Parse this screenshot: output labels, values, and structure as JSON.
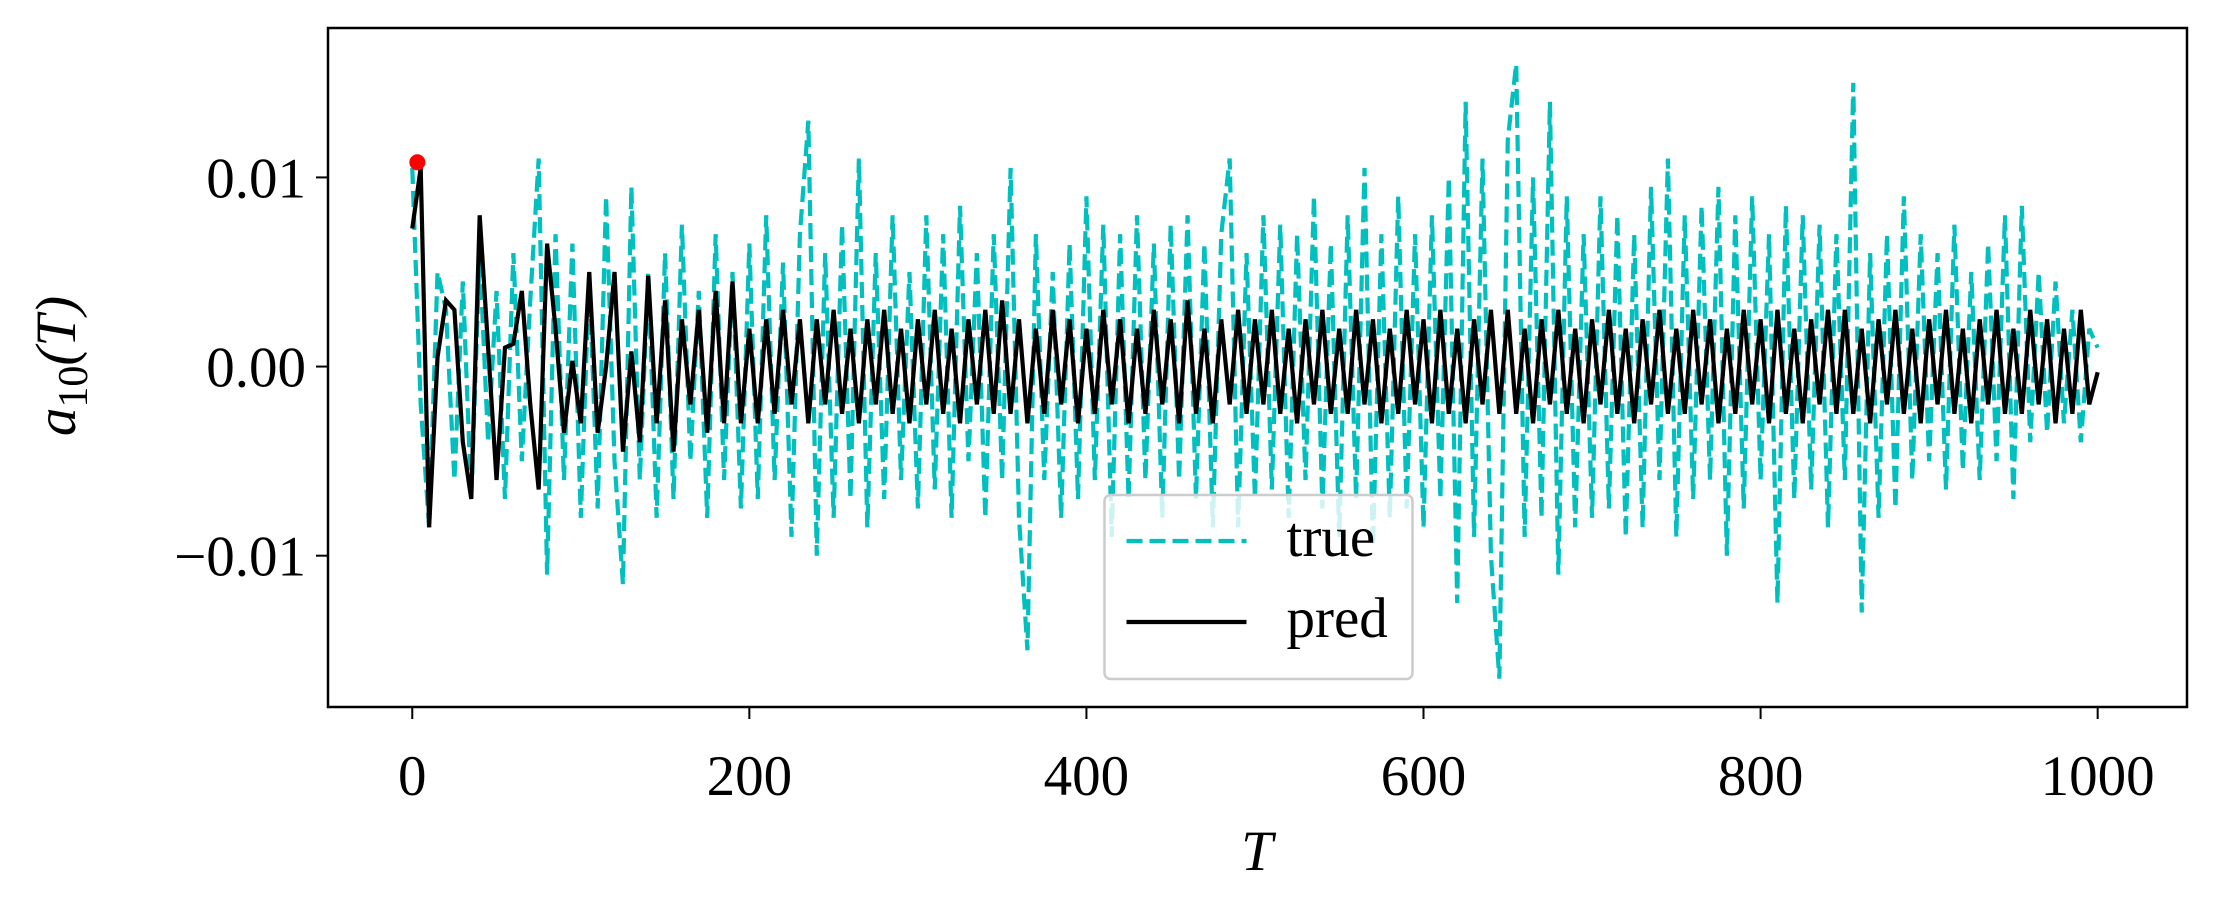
{
  "chart_data": {
    "type": "line",
    "ylabel": {
      "base": "a",
      "sub": "10",
      "arg": "(T)"
    },
    "xlabel": "T",
    "x": [
      0,
      5,
      10,
      15,
      20,
      25,
      30,
      35,
      40,
      45,
      50,
      55,
      60,
      65,
      70,
      75,
      80,
      85,
      90,
      95,
      100,
      105,
      110,
      115,
      120,
      125,
      130,
      135,
      140,
      145,
      150,
      155,
      160,
      165,
      170,
      175,
      180,
      185,
      190,
      195,
      200,
      205,
      210,
      215,
      220,
      225,
      230,
      235,
      240,
      245,
      250,
      255,
      260,
      265,
      270,
      275,
      280,
      285,
      290,
      295,
      300,
      305,
      310,
      315,
      320,
      325,
      330,
      335,
      340,
      345,
      350,
      355,
      360,
      365,
      370,
      375,
      380,
      385,
      390,
      395,
      400,
      405,
      410,
      415,
      420,
      425,
      430,
      435,
      440,
      445,
      450,
      455,
      460,
      465,
      470,
      475,
      480,
      485,
      490,
      495,
      500,
      505,
      510,
      515,
      520,
      525,
      530,
      535,
      540,
      545,
      550,
      555,
      560,
      565,
      570,
      575,
      580,
      585,
      590,
      595,
      600,
      605,
      610,
      615,
      620,
      625,
      630,
      635,
      640,
      645,
      650,
      655,
      660,
      665,
      670,
      675,
      680,
      685,
      690,
      695,
      700,
      705,
      710,
      715,
      720,
      725,
      730,
      735,
      740,
      745,
      750,
      755,
      760,
      765,
      770,
      775,
      780,
      785,
      790,
      795,
      800,
      805,
      810,
      815,
      820,
      825,
      830,
      835,
      840,
      845,
      850,
      855,
      860,
      865,
      870,
      875,
      880,
      885,
      890,
      895,
      900,
      905,
      910,
      915,
      920,
      925,
      930,
      935,
      940,
      945,
      950,
      955,
      960,
      965,
      970,
      975,
      980,
      985,
      990,
      995,
      1000
    ],
    "series": [
      {
        "name": "true",
        "color": "#00bfbf",
        "linestyle": "--",
        "values": [
          0.0105,
          -0.002,
          -0.0085,
          0.005,
          0.003,
          -0.006,
          0.0045,
          -0.007,
          0.006,
          -0.004,
          0.004,
          -0.007,
          0.006,
          -0.005,
          0.0035,
          0.011,
          -0.011,
          0.007,
          -0.006,
          0.0065,
          -0.008,
          0.005,
          -0.0075,
          0.009,
          -0.005,
          -0.0115,
          0.0095,
          -0.006,
          0.005,
          -0.008,
          0.006,
          -0.007,
          0.0075,
          -0.005,
          0.004,
          -0.008,
          0.007,
          -0.006,
          0.005,
          -0.0075,
          0.0065,
          -0.007,
          0.008,
          -0.006,
          0.0055,
          -0.009,
          0.007,
          0.013,
          -0.01,
          0.006,
          -0.008,
          0.0075,
          -0.007,
          0.011,
          -0.0085,
          0.006,
          -0.007,
          0.008,
          -0.006,
          0.005,
          -0.0075,
          0.008,
          -0.0065,
          0.007,
          -0.008,
          0.0085,
          -0.005,
          0.006,
          -0.008,
          0.007,
          -0.006,
          0.0105,
          -0.008,
          -0.015,
          0.007,
          -0.006,
          0.005,
          -0.008,
          0.0065,
          -0.007,
          0.009,
          -0.006,
          0.0075,
          -0.009,
          0.007,
          -0.007,
          0.008,
          -0.006,
          0.0065,
          -0.008,
          0.0075,
          -0.006,
          0.008,
          -0.007,
          0.0065,
          -0.0085,
          0.007,
          0.011,
          -0.0085,
          0.006,
          -0.007,
          0.008,
          -0.0065,
          0.0075,
          -0.008,
          0.007,
          -0.006,
          0.009,
          -0.0075,
          0.0065,
          -0.009,
          0.008,
          -0.007,
          0.0105,
          -0.0095,
          0.007,
          -0.008,
          0.009,
          -0.0075,
          0.007,
          -0.0085,
          0.008,
          -0.007,
          0.01,
          -0.0125,
          0.014,
          -0.009,
          0.011,
          -0.01,
          -0.0165,
          0.012,
          0.016,
          -0.009,
          0.01,
          -0.008,
          0.014,
          -0.011,
          0.009,
          -0.0085,
          0.007,
          -0.008,
          0.009,
          -0.0075,
          0.008,
          -0.009,
          0.007,
          -0.0085,
          0.0095,
          -0.006,
          0.011,
          -0.009,
          0.008,
          -0.007,
          0.0085,
          -0.006,
          0.0095,
          -0.01,
          0.008,
          -0.0075,
          0.009,
          -0.006,
          0.007,
          -0.0125,
          0.0085,
          -0.007,
          0.008,
          -0.0065,
          0.0075,
          -0.0085,
          0.007,
          -0.006,
          0.015,
          -0.013,
          0.006,
          -0.008,
          0.007,
          -0.0075,
          0.009,
          -0.006,
          0.007,
          -0.005,
          0.006,
          -0.0065,
          0.0075,
          -0.0055,
          0.005,
          -0.006,
          0.0065,
          -0.005,
          0.008,
          -0.007,
          0.0085,
          -0.004,
          0.005,
          -0.0035,
          0.0045,
          -0.003,
          0.003,
          -0.004,
          0.002,
          0.001
        ]
      },
      {
        "name": "pred",
        "color": "#000000",
        "linestyle": "-",
        "values": [
          0.0073,
          0.0105,
          -0.0085,
          0.0005,
          0.0035,
          0.003,
          -0.004,
          -0.007,
          0.008,
          0.001,
          -0.006,
          0.001,
          0.0012,
          0.004,
          -0.002,
          -0.0065,
          0.0065,
          0.002,
          -0.0035,
          0.0003,
          -0.003,
          0.005,
          -0.0035,
          0.0,
          0.005,
          -0.0045,
          0.0008,
          -0.004,
          0.0048,
          -0.003,
          0.0035,
          -0.0045,
          0.0025,
          -0.002,
          0.003,
          -0.0035,
          0.004,
          -0.003,
          0.0045,
          -0.003,
          0.002,
          -0.003,
          0.0025,
          -0.0025,
          0.003,
          -0.002,
          0.0025,
          -0.003,
          0.0025,
          -0.002,
          0.003,
          -0.0025,
          0.002,
          -0.003,
          0.0025,
          -0.002,
          0.003,
          -0.0025,
          0.002,
          -0.003,
          0.0025,
          -0.002,
          0.003,
          -0.0025,
          0.002,
          -0.003,
          0.0025,
          -0.002,
          0.003,
          -0.0025,
          0.0035,
          -0.0025,
          0.0025,
          -0.003,
          0.002,
          -0.0025,
          0.003,
          -0.002,
          0.0025,
          -0.003,
          0.002,
          -0.0025,
          0.003,
          -0.002,
          0.0025,
          -0.003,
          0.002,
          -0.0025,
          0.003,
          -0.002,
          0.0025,
          -0.003,
          0.0035,
          -0.0025,
          0.002,
          -0.003,
          0.0025,
          -0.002,
          0.003,
          -0.0025,
          0.0025,
          -0.002,
          0.003,
          -0.0025,
          0.002,
          -0.003,
          0.0025,
          -0.002,
          0.003,
          -0.0025,
          0.002,
          -0.0025,
          0.003,
          -0.002,
          0.0025,
          -0.003,
          0.002,
          -0.0025,
          0.003,
          -0.002,
          0.0025,
          -0.003,
          0.003,
          -0.0025,
          0.002,
          -0.003,
          0.0025,
          -0.002,
          0.003,
          -0.0025,
          0.003,
          -0.0025,
          0.002,
          -0.003,
          0.0025,
          -0.002,
          0.003,
          -0.0025,
          0.002,
          -0.003,
          0.0025,
          -0.002,
          0.003,
          -0.0025,
          0.002,
          -0.003,
          0.0025,
          -0.002,
          0.003,
          -0.0025,
          0.002,
          -0.0025,
          0.003,
          -0.002,
          0.0025,
          -0.003,
          0.002,
          -0.0025,
          0.003,
          -0.002,
          0.0025,
          -0.003,
          0.003,
          -0.0025,
          0.002,
          -0.003,
          0.0025,
          -0.002,
          0.003,
          -0.0025,
          0.003,
          -0.0025,
          0.002,
          -0.003,
          0.0025,
          -0.002,
          0.003,
          -0.0025,
          0.002,
          -0.003,
          0.0025,
          -0.002,
          0.003,
          -0.0025,
          0.002,
          -0.003,
          0.0025,
          -0.002,
          0.003,
          -0.0025,
          0.002,
          -0.0025,
          0.003,
          -0.002,
          0.0025,
          -0.003,
          0.002,
          -0.0025,
          0.003,
          -0.002,
          -0.0003
        ]
      }
    ],
    "marker": {
      "x": 3,
      "y": 0.0108,
      "color": "#ff0000"
    },
    "xlim": [
      -50,
      1053
    ],
    "ylim": [
      -0.018,
      0.0179
    ],
    "xticks": [
      0,
      200,
      400,
      600,
      800,
      1000
    ],
    "yticks": [
      {
        "value": -0.01,
        "label": "−0.01"
      },
      {
        "value": 0,
        "label": "0.00"
      },
      0.01
    ],
    "legend": "lower center"
  }
}
